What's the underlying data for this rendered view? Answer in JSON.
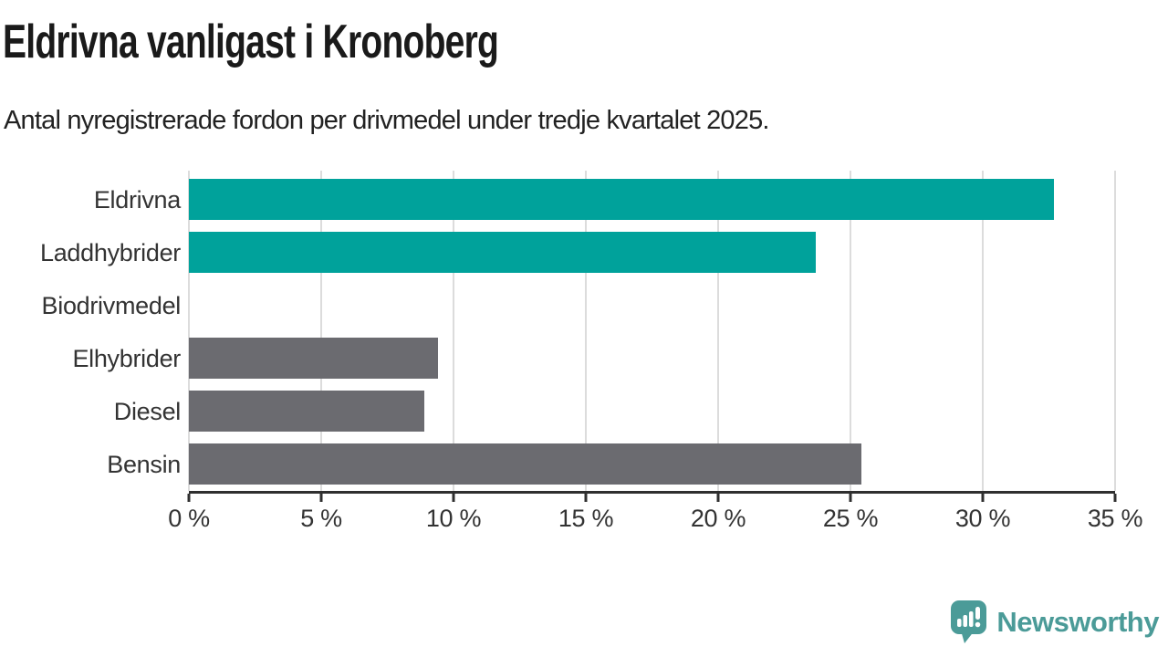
{
  "chart_data": {
    "type": "bar",
    "orientation": "horizontal",
    "title": "Eldrivna vanligast i Kronoberg",
    "subtitle": "Antal nyregistrerade fordon per drivmedel under tredje kvartalet 2025.",
    "categories": [
      "Eldrivna",
      "Laddhybrider",
      "Biodrivmedel",
      "Elhybrider",
      "Diesel",
      "Bensin"
    ],
    "values": [
      32.7,
      23.7,
      0,
      9.4,
      8.9,
      25.4
    ],
    "unit": "%",
    "xlim": [
      0,
      35
    ],
    "x_ticks": [
      0,
      5,
      10,
      15,
      20,
      25,
      30,
      35
    ],
    "x_tick_labels": [
      "0 %",
      "5 %",
      "10 %",
      "15 %",
      "20 %",
      "25 %",
      "30 %",
      "35 %"
    ],
    "grid": true,
    "legend": "none",
    "bar_colors": [
      "#00a29b",
      "#00a29b",
      "#6b6b70",
      "#6b6b70",
      "#6b6b70",
      "#6b6b70"
    ],
    "colors": {
      "highlight": "#00a29b",
      "default_bar": "#6b6b70",
      "gridline": "#dcdcdc",
      "axis": "#2f2f2f",
      "text": "#333333"
    }
  },
  "footer": {
    "brand": "Newsworthy",
    "brand_color": "#4b9b98"
  }
}
